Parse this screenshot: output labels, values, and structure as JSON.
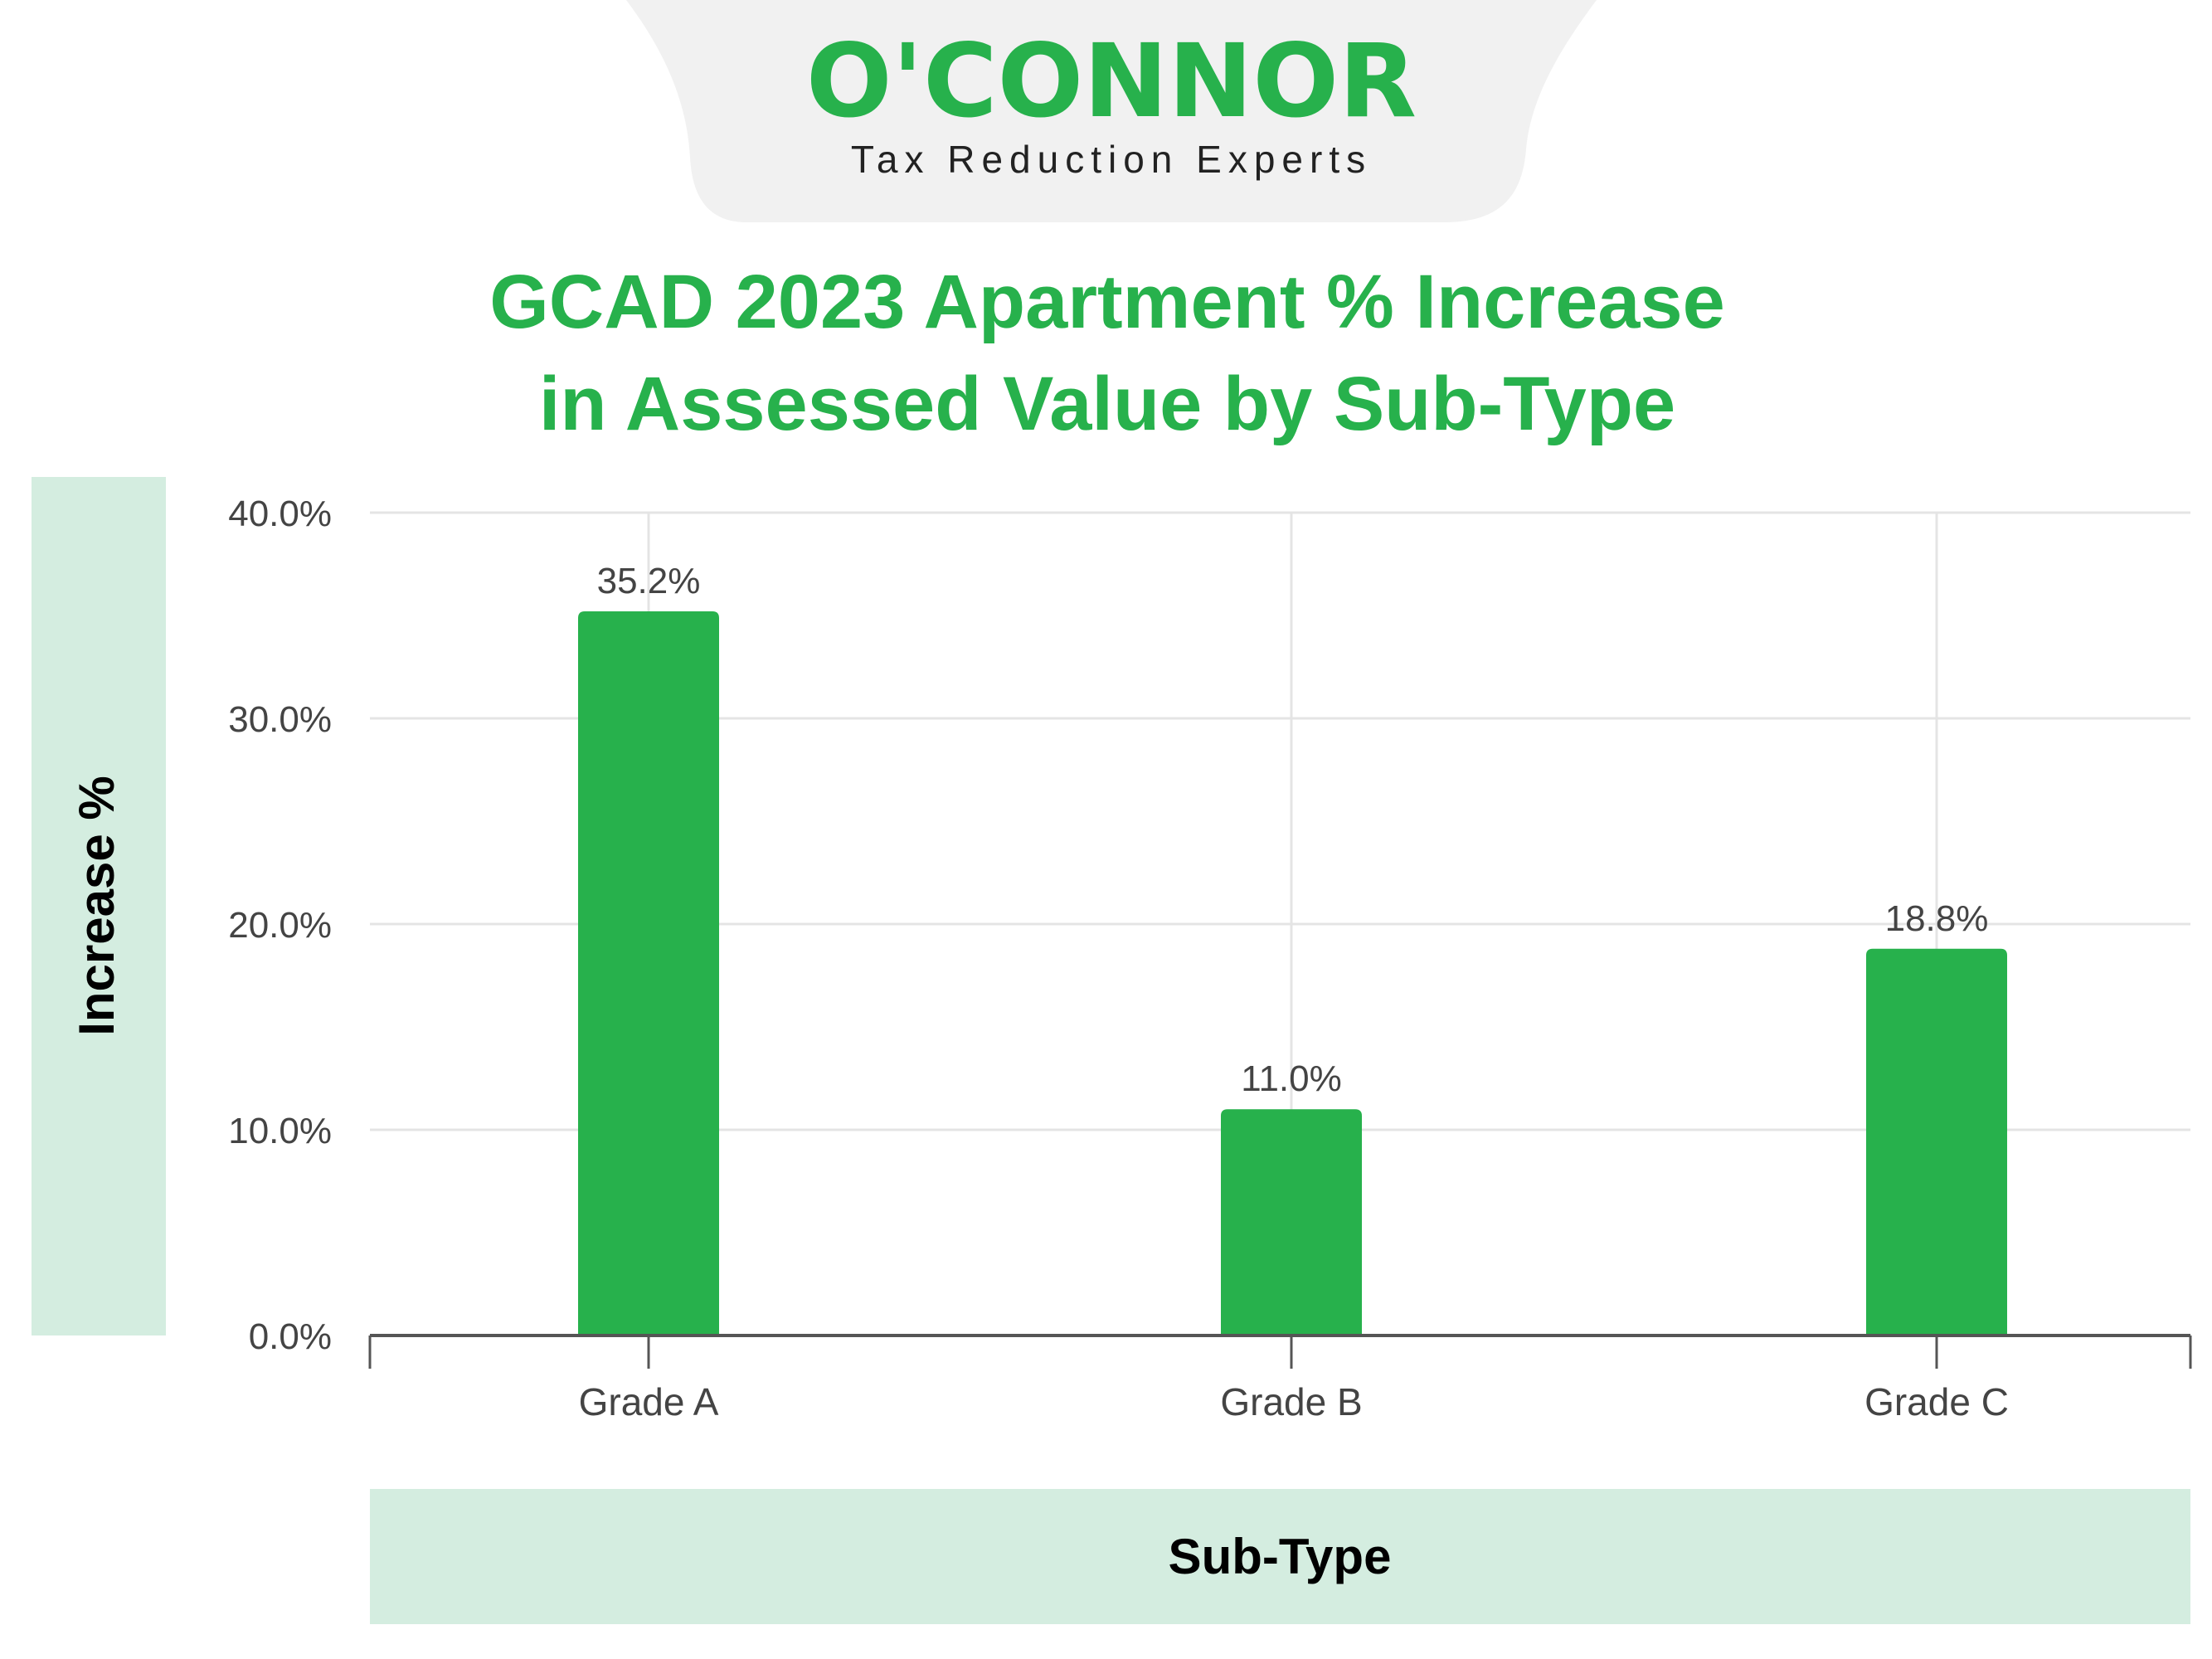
{
  "brand": {
    "name": "O'CONNOR",
    "tagline": "Tax Reduction Experts",
    "color": "#27b14c"
  },
  "colors": {
    "bar": "#27b14c",
    "title": "#27b14c",
    "label_panel": "#d4ede0",
    "gridline": "#e4e4e4",
    "axis": "#555555",
    "text_dark": "#444444"
  },
  "chart_data": {
    "type": "bar",
    "title_lines": [
      "GCAD 2023 Apartment % Increase",
      "in Assessed Value by Sub-Type"
    ],
    "xlabel": "Sub-Type",
    "ylabel": "Increase %",
    "categories": [
      "Grade A",
      "Grade B",
      "Grade C"
    ],
    "values": [
      35.2,
      11.0,
      18.8
    ],
    "data_labels": [
      "35.2%",
      "11.0%",
      "18.8%"
    ],
    "ylim": [
      0,
      40
    ],
    "yticks": [
      0,
      10,
      20,
      30,
      40
    ],
    "ytick_labels": [
      "0.0%",
      "10.0%",
      "20.0%",
      "30.0%",
      "40.0%"
    ],
    "grid": true
  }
}
